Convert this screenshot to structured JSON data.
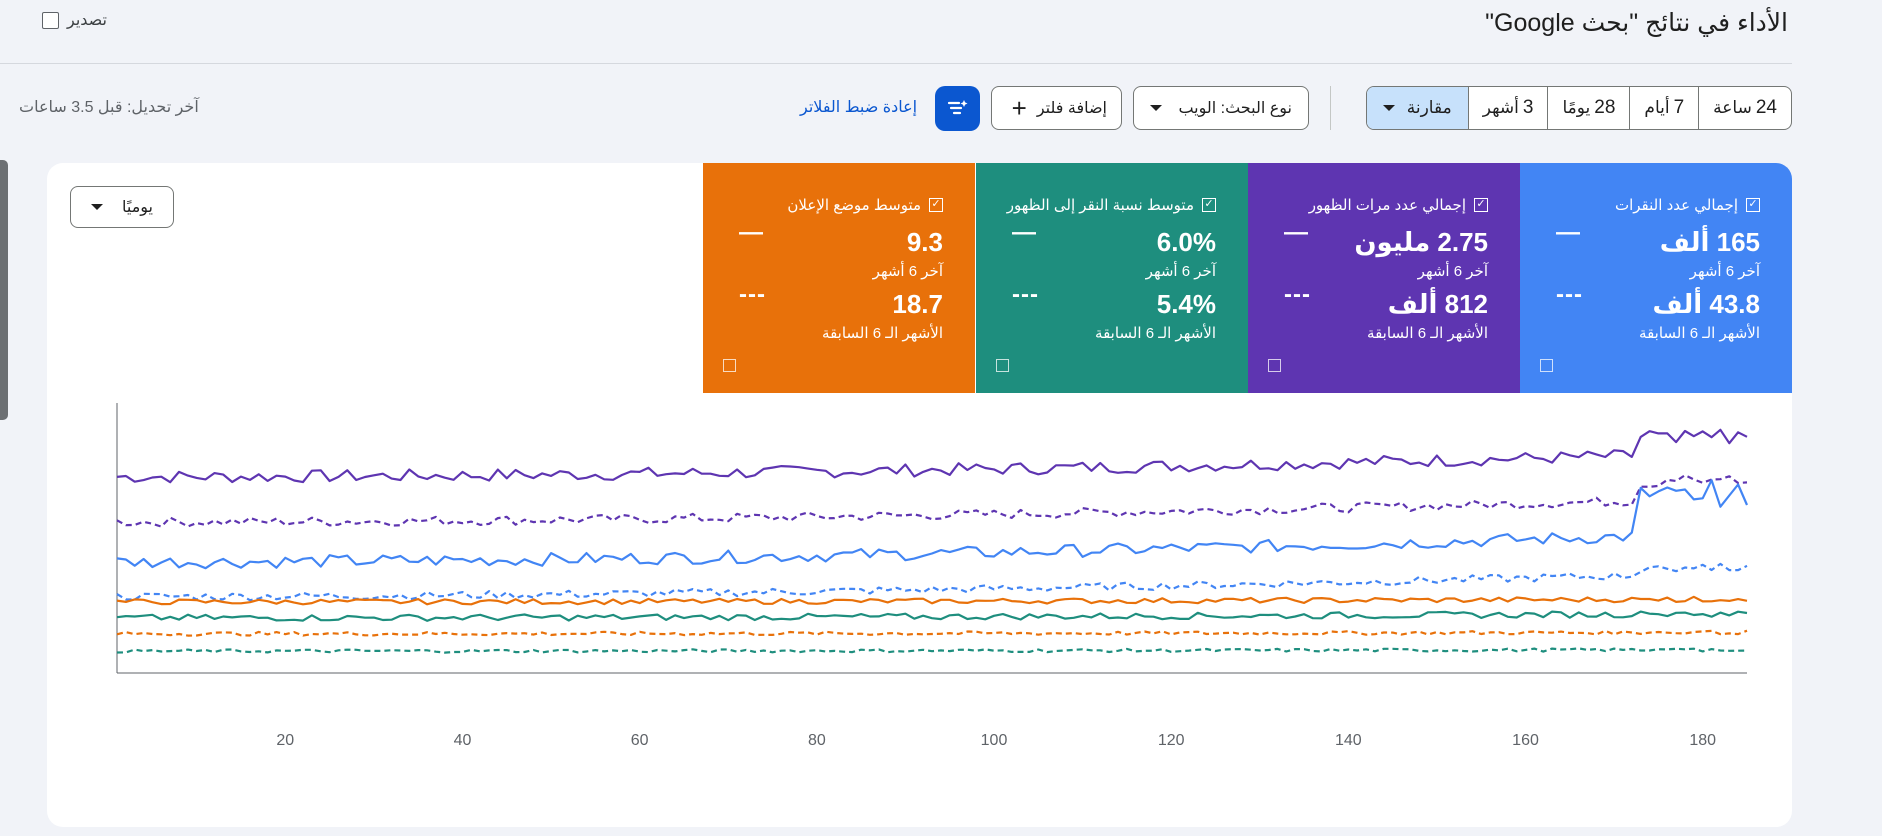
{
  "header": {
    "title": "الأداء في نتائج \"بحث Google\"",
    "export_label": "تصدير"
  },
  "toolbar": {
    "ranges": [
      {
        "num": "24",
        "unit": "ساعة"
      },
      {
        "num": "7",
        "unit": "أيام"
      },
      {
        "num": "28",
        "unit": "يومًا"
      },
      {
        "num": "3",
        "unit": "أشهر"
      }
    ],
    "compare_label": "مقارنة",
    "search_type_label": "نوع البحث: الويب",
    "add_filter_label": "إضافة فلتر",
    "reset_filters_label": "إعادة ضبط الفلاتر",
    "last_updated": "آخر تحديل: قبل 3.5 ساعات"
  },
  "granularity": "يوميًا",
  "metrics": [
    {
      "name": "إجمالي عدد النقرات",
      "current_value": "165 ألف",
      "current_label": "آخر 6 أشهر",
      "previous_value": "43.8 ألف",
      "previous_label": "الأشهر الـ 6 السابقة",
      "color": "#4285f4",
      "current_dash": "—",
      "previous_dash": "---"
    },
    {
      "name": "إجمالي عدد مرات الظهور",
      "current_value": "2.75 مليون",
      "current_label": "آخر 6 أشهر",
      "previous_value": "812 ألف",
      "previous_label": "الأشهر الـ 6 السابقة",
      "color": "#5e35b1",
      "current_dash": "—",
      "previous_dash": "---"
    },
    {
      "name": "متوسط نسبة النقر إلى الظهور",
      "current_value": "6.0%",
      "current_label": "آخر 6 أشهر",
      "previous_value": "5.4%",
      "previous_label": "الأشهر الـ 6 السابقة",
      "color": "#1e8e7e",
      "current_dash": "—",
      "previous_dash": "---"
    },
    {
      "name": "متوسط موضع الإعلان",
      "current_value": "9.3",
      "current_label": "آخر 6 أشهر",
      "previous_value": "18.7",
      "previous_label": "الأشهر الـ 6 السابقة",
      "color": "#e8710a",
      "current_dash": "—",
      "previous_dash": "---"
    }
  ],
  "chart_data": {
    "type": "line",
    "xticks": [
      20,
      40,
      60,
      80,
      100,
      120,
      140,
      160,
      180
    ],
    "xlim": [
      1,
      185
    ],
    "ylim": [
      0,
      100
    ],
    "series": [
      {
        "color": "#5e35b1",
        "style": "solid",
        "base": 73,
        "trend": 9,
        "noise": 2.4,
        "spike": 8
      },
      {
        "color": "#5e35b1",
        "style": "dashed",
        "base": 56,
        "trend": 9,
        "noise": 1.8,
        "spike": 9
      },
      {
        "color": "#4285f4",
        "style": "solid",
        "base": 41,
        "trend": 11,
        "noise": 2.4,
        "spike": 18
      },
      {
        "color": "#4285f4",
        "style": "dashed",
        "base": 28,
        "trend": 9,
        "noise": 1.5,
        "spike": 3
      },
      {
        "color": "#e8710a",
        "style": "solid",
        "base": 26,
        "trend": 1,
        "noise": 1.0,
        "spike": 0
      },
      {
        "color": "#1e8e7e",
        "style": "solid",
        "base": 20,
        "trend": 1.5,
        "noise": 1.2,
        "spike": 0
      },
      {
        "color": "#e8710a",
        "style": "dashed",
        "base": 14,
        "trend": 0.5,
        "noise": 0.7,
        "spike": 0
      },
      {
        "color": "#1e8e7e",
        "style": "dashed",
        "base": 7.5,
        "trend": 0.5,
        "noise": 0.6,
        "spike": 0
      }
    ]
  }
}
